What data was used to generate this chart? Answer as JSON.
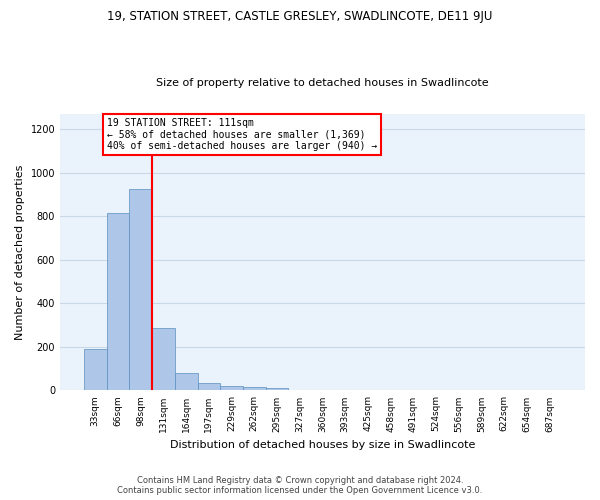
{
  "title1": "19, STATION STREET, CASTLE GRESLEY, SWADLINCOTE, DE11 9JU",
  "title2": "Size of property relative to detached houses in Swadlincote",
  "xlabel": "Distribution of detached houses by size in Swadlincote",
  "ylabel": "Number of detached properties",
  "footer1": "Contains HM Land Registry data © Crown copyright and database right 2024.",
  "footer2": "Contains public sector information licensed under the Open Government Licence v3.0.",
  "bin_labels": [
    "33sqm",
    "66sqm",
    "98sqm",
    "131sqm",
    "164sqm",
    "197sqm",
    "229sqm",
    "262sqm",
    "295sqm",
    "327sqm",
    "360sqm",
    "393sqm",
    "425sqm",
    "458sqm",
    "491sqm",
    "524sqm",
    "556sqm",
    "589sqm",
    "622sqm",
    "654sqm",
    "687sqm"
  ],
  "bar_values": [
    190,
    815,
    925,
    285,
    82,
    35,
    20,
    15,
    10,
    0,
    0,
    0,
    0,
    0,
    0,
    0,
    0,
    0,
    0,
    0,
    0
  ],
  "bar_color": "#aec6e8",
  "bar_edge_color": "#5a8fc0",
  "grid_color": "#c8d8e8",
  "background_color": "#eaf2fb",
  "property_label": "19 STATION STREET: 111sqm",
  "annotation_line1": "← 58% of detached houses are smaller (1,369)",
  "annotation_line2": "40% of semi-detached houses are larger (940) →",
  "ylim": [
    0,
    1270
  ],
  "yticks": [
    0,
    200,
    400,
    600,
    800,
    1000,
    1200
  ],
  "box_color": "white",
  "box_edge_color": "red",
  "red_line_color": "red",
  "title1_fontsize": 8.5,
  "title2_fontsize": 8.0,
  "ylabel_fontsize": 8.0,
  "xlabel_fontsize": 8.0,
  "tick_fontsize": 6.5,
  "annotation_fontsize": 7.0,
  "footer_fontsize": 6.0
}
